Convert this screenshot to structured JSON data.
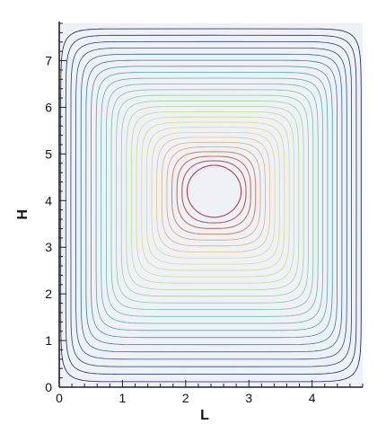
{
  "chart_data": {
    "type": "contour",
    "title": "",
    "xlabel": "L",
    "ylabel": "H",
    "xlim": [
      0,
      4.8
    ],
    "ylim": [
      0,
      7.8
    ],
    "x_ticks": [
      0,
      1,
      2,
      3,
      4
    ],
    "y_ticks": [
      0,
      1,
      2,
      3,
      4,
      5,
      6,
      7
    ],
    "x_tick_labels": [
      "0",
      "1",
      "2",
      "3",
      "4"
    ],
    "y_tick_labels": [
      "0",
      "1",
      "2",
      "3",
      "4",
      "5",
      "6",
      "7"
    ],
    "grid": false,
    "legend": "none",
    "vortex_center": [
      2.45,
      4.2
    ],
    "contour_levels": 26,
    "level_colors": [
      "#1a1a55",
      "#2a5f90",
      "#4fa8b0",
      "#86c9a0",
      "#c8dc90",
      "#e8d48a",
      "#d89a70",
      "#a84050"
    ],
    "background_tint": "#eef2f6"
  }
}
